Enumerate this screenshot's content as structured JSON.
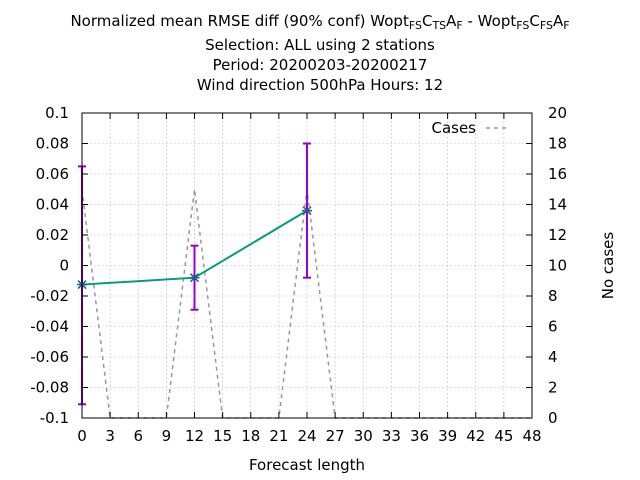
{
  "title": {
    "line1": {
      "prefix": "Normalized mean RMSE diff (90% conf) Wopt",
      "a_sub1": "FS",
      "a_c": "C",
      "a_sub2": "TS",
      "a_a": "A",
      "a_sub3": "F",
      "sep": " - Wopt",
      "b_sub1": "FS",
      "b_c": "C",
      "b_sub2": "FS",
      "b_a": "A",
      "b_sub3": "F"
    },
    "line2": "Selection: ALL using     2 stations",
    "line3": "Period: 20200203-20200217",
    "line4": "Wind direction 500hPa   Hours:  12"
  },
  "chart_data": {
    "type": "line",
    "xlabel": "Forecast length",
    "y2label": "No cases",
    "x_ticks": [
      0,
      3,
      6,
      9,
      12,
      15,
      18,
      21,
      24,
      27,
      30,
      33,
      36,
      39,
      42,
      45,
      48
    ],
    "y_ticks": [
      -0.1,
      -0.08,
      -0.06,
      -0.04,
      -0.02,
      0,
      0.02,
      0.04,
      0.06,
      0.08,
      0.1
    ],
    "y_tick_labels": [
      "-0.1",
      "-0.08",
      "-0.06",
      "-0.04",
      "-0.02",
      "0",
      "0.02",
      "0.04",
      "0.06",
      "0.08",
      "0.1"
    ],
    "y2_ticks": [
      0,
      2,
      4,
      6,
      8,
      10,
      12,
      14,
      16,
      18,
      20
    ],
    "xlim": [
      0,
      48
    ],
    "ylim": [
      -0.1,
      0.1
    ],
    "y2lim": [
      0,
      20
    ],
    "grid": true,
    "legend_position": "top-right",
    "series": [
      {
        "axis": "y",
        "x": [
          0,
          12,
          24
        ],
        "y": [
          -0.0125,
          -0.008,
          0.036
        ],
        "err_low": [
          -0.091,
          -0.029,
          -0.008
        ],
        "err_high": [
          0.065,
          0.013,
          0.08
        ],
        "color": "#009e73",
        "error_color": "#9400d3"
      },
      {
        "name": "Cases",
        "axis": "y2",
        "x": [
          0,
          3,
          9,
          12,
          15,
          21,
          24,
          27,
          48
        ],
        "y": [
          15,
          0,
          0,
          15,
          0,
          0,
          15,
          0,
          0
        ],
        "color": "#999999",
        "dashed": true
      }
    ]
  }
}
